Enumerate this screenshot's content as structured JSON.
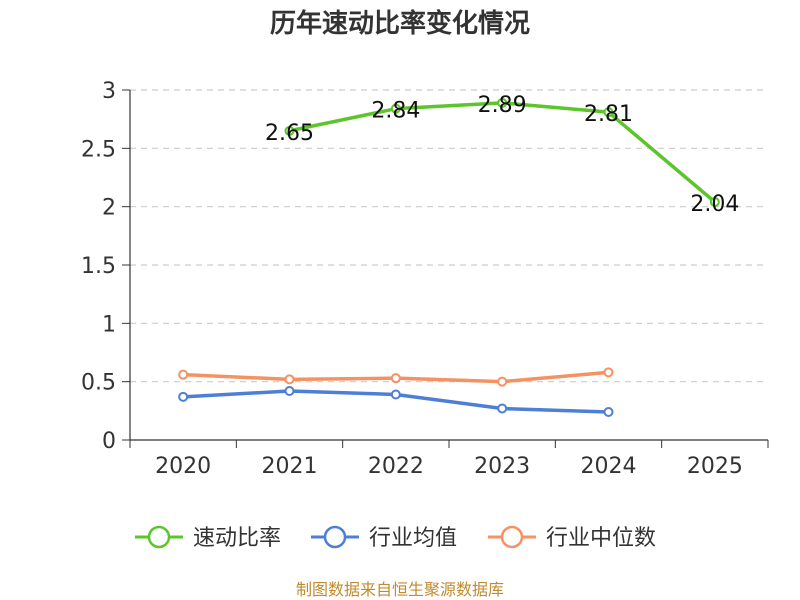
{
  "chart_data": {
    "type": "line",
    "title": "历年速动比率变化情况",
    "categories": [
      "2020",
      "2021",
      "2022",
      "2023",
      "2024",
      "2025"
    ],
    "ylim": [
      0,
      3
    ],
    "yticks": [
      "0",
      "0.5",
      "1",
      "1.5",
      "2",
      "2.5",
      "3"
    ],
    "grid": true,
    "legend_position": "bottom",
    "series": [
      {
        "name": "速动比率",
        "color": "#5cc52a",
        "values": [
          null,
          2.65,
          2.84,
          2.89,
          2.81,
          2.04
        ],
        "labels": [
          "",
          "2.65",
          "2.84",
          "2.89",
          "2.81",
          "2.04"
        ]
      },
      {
        "name": "行业均值",
        "color": "#4e7fd6",
        "values": [
          0.37,
          0.42,
          0.39,
          0.27,
          0.24,
          null
        ]
      },
      {
        "name": "行业中位数",
        "color": "#f59263",
        "values": [
          0.56,
          0.52,
          0.53,
          0.5,
          0.58,
          null
        ]
      }
    ]
  },
  "source": "制图数据来自恒生聚源数据库"
}
